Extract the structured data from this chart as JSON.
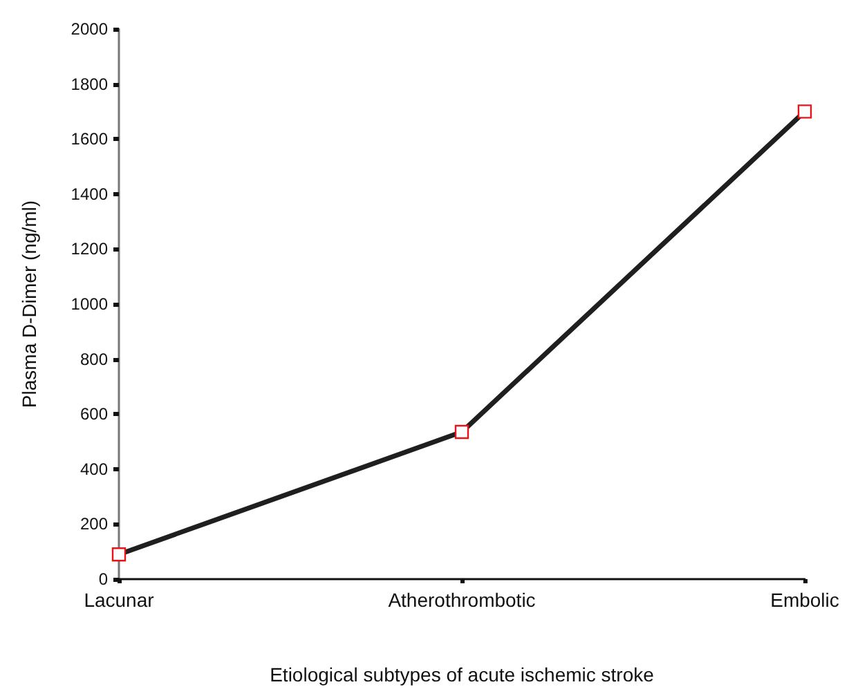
{
  "chart_data": {
    "type": "line",
    "xlabel": "Etiological subtypes of acute ischemic stroke",
    "ylabel": "Plasma D-Dimer (ng/ml)",
    "categories": [
      "Lacunar",
      "Atherothrombotic",
      "Embolic"
    ],
    "series": [
      {
        "color": "#1f1f1f",
        "values": [
          90,
          535,
          1700
        ]
      }
    ],
    "marker": "square",
    "line_style": "solid",
    "grid": false,
    "ylim": [
      0,
      2000
    ],
    "yticks": [
      0,
      200,
      400,
      600,
      800,
      1000,
      1200,
      1400,
      1600,
      1800,
      2000
    ]
  }
}
